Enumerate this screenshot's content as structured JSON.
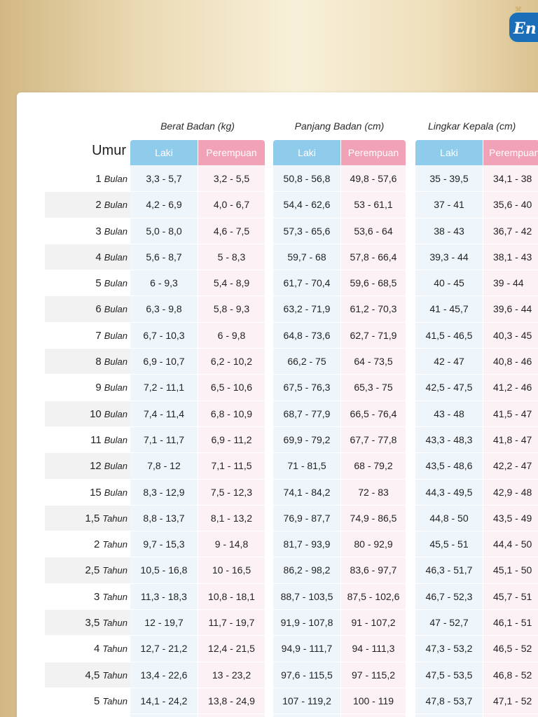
{
  "logo": {
    "text": "En"
  },
  "header": {
    "umur": "Umur",
    "groups": [
      "Berat Badan (kg)",
      "Panjang Badan (cm)",
      "Lingkar Kepala (cm)"
    ],
    "laki": "Laki",
    "perempuan": "Perempuan"
  },
  "rows": [
    {
      "age": "1",
      "unit": "Bulan",
      "v": [
        "3,3 - 5,7",
        "3,2 - 5,5",
        "50,8 - 56,8",
        "49,8 - 57,6",
        "35 - 39,5",
        "34,1 - 38"
      ]
    },
    {
      "age": "2",
      "unit": "Bulan",
      "v": [
        "4,2 - 6,9",
        "4,0 - 6,7",
        "54,4 - 62,6",
        "53 - 61,1",
        "37 - 41",
        "35,6 - 40"
      ]
    },
    {
      "age": "3",
      "unit": "Bulan",
      "v": [
        "5,0 - 8,0",
        "4,6 - 7,5",
        "57,3 - 65,6",
        "53,6 - 64",
        "38 - 43",
        "36,7 - 42"
      ]
    },
    {
      "age": "4",
      "unit": "Bulan",
      "v": [
        "5,6 - 8,7",
        "5 - 8,3",
        "59,7 - 68",
        "57,8 - 66,4",
        "39,3 - 44",
        "38,1 - 43"
      ]
    },
    {
      "age": "5",
      "unit": "Bulan",
      "v": [
        "6 - 9,3",
        "5,4 - 8,9",
        "61,7 - 70,4",
        "59,6 - 68,5",
        "40 - 45",
        "39 - 44"
      ]
    },
    {
      "age": "6",
      "unit": "Bulan",
      "v": [
        "6,3 - 9,8",
        "5,8 - 9,3",
        "63,2 - 71,9",
        "61,2 - 70,3",
        "41 - 45,7",
        "39,6 - 44"
      ]
    },
    {
      "age": "7",
      "unit": "Bulan",
      "v": [
        "6,7 - 10,3",
        "6 - 9,8",
        "64,8 - 73,6",
        "62,7 - 71,9",
        "41,5 - 46,5",
        "40,3 - 45"
      ]
    },
    {
      "age": "8",
      "unit": "Bulan",
      "v": [
        "6,9 - 10,7",
        "6,2 - 10,2",
        "66,2 - 75",
        "64 - 73,5",
        "42 - 47",
        "40,8 - 46"
      ]
    },
    {
      "age": "9",
      "unit": "Bulan",
      "v": [
        "7,2 - 11,1",
        "6,5 - 10,6",
        "67,5 - 76,3",
        "65,3 - 75",
        "42,5 - 47,5",
        "41,2 - 46"
      ]
    },
    {
      "age": "10",
      "unit": "Bulan",
      "v": [
        "7,4 - 11,4",
        "6,8 - 10,9",
        "68,7 - 77,9",
        "66,5 - 76,4",
        "43 - 48",
        "41,5 - 47"
      ]
    },
    {
      "age": "11",
      "unit": "Bulan",
      "v": [
        "7,1 - 11,7",
        "6,9 - 11,2",
        "69,9 - 79,2",
        "67,7 - 77,8",
        "43,3 - 48,3",
        "41,8 - 47"
      ]
    },
    {
      "age": "12",
      "unit": "Bulan",
      "v": [
        "7,8 - 12",
        "7,1 - 11,5",
        "71 - 81,5",
        "68 - 79,2",
        "43,5 - 48,6",
        "42,2 - 47"
      ]
    },
    {
      "age": "15",
      "unit": "Bulan",
      "v": [
        "8,3 - 12,9",
        "7,5 - 12,3",
        "74,1 - 84,2",
        "72 - 83",
        "44,3 - 49,5",
        "42,9 - 48"
      ]
    },
    {
      "age": "1,5",
      "unit": "Tahun",
      "v": [
        "8,8 - 13,7",
        "8,1 - 13,2",
        "76,9 - 87,7",
        "74,9 - 86,5",
        "44,8 - 50",
        "43,5 - 49"
      ]
    },
    {
      "age": "2",
      "unit": "Tahun",
      "v": [
        "9,7 - 15,3",
        "9 - 14,8",
        "81,7 - 93,9",
        "80 - 92,9",
        "45,5 - 51",
        "44,4 - 50"
      ]
    },
    {
      "age": "2,5",
      "unit": "Tahun",
      "v": [
        "10,5 - 16,8",
        "10 - 16,5",
        "86,2 - 98,2",
        "83,6 - 97,7",
        "46,3 - 51,7",
        "45,1 - 50"
      ]
    },
    {
      "age": "3",
      "unit": "Tahun",
      "v": [
        "11,3 - 18,3",
        "10,8 - 18,1",
        "88,7 - 103,5",
        "87,5 - 102,6",
        "46,7 - 52,3",
        "45,7 - 51"
      ]
    },
    {
      "age": "3,5",
      "unit": "Tahun",
      "v": [
        "12 - 19,7",
        "11,7 - 19,7",
        "91,9 - 107,8",
        "91 - 107,2",
        "47 - 52,7",
        "46,1 - 51"
      ]
    },
    {
      "age": "4",
      "unit": "Tahun",
      "v": [
        "12,7 - 21,2",
        "12,4 - 21,5",
        "94,9 - 111,7",
        "94 - 111,3",
        "47,3 - 53,2",
        "46,5 - 52"
      ]
    },
    {
      "age": "4,5",
      "unit": "Tahun",
      "v": [
        "13,4 - 22,6",
        "13 - 23,2",
        "97,6 - 115,5",
        "97 - 115,2",
        "47,5 - 53,5",
        "46,8 - 52"
      ]
    },
    {
      "age": "5",
      "unit": "Tahun",
      "v": [
        "14,1 - 24,2",
        "13,8 - 24,9",
        "107 - 119,2",
        "100 - 119",
        "47,8 - 53,7",
        "47,1 - 52"
      ]
    }
  ]
}
